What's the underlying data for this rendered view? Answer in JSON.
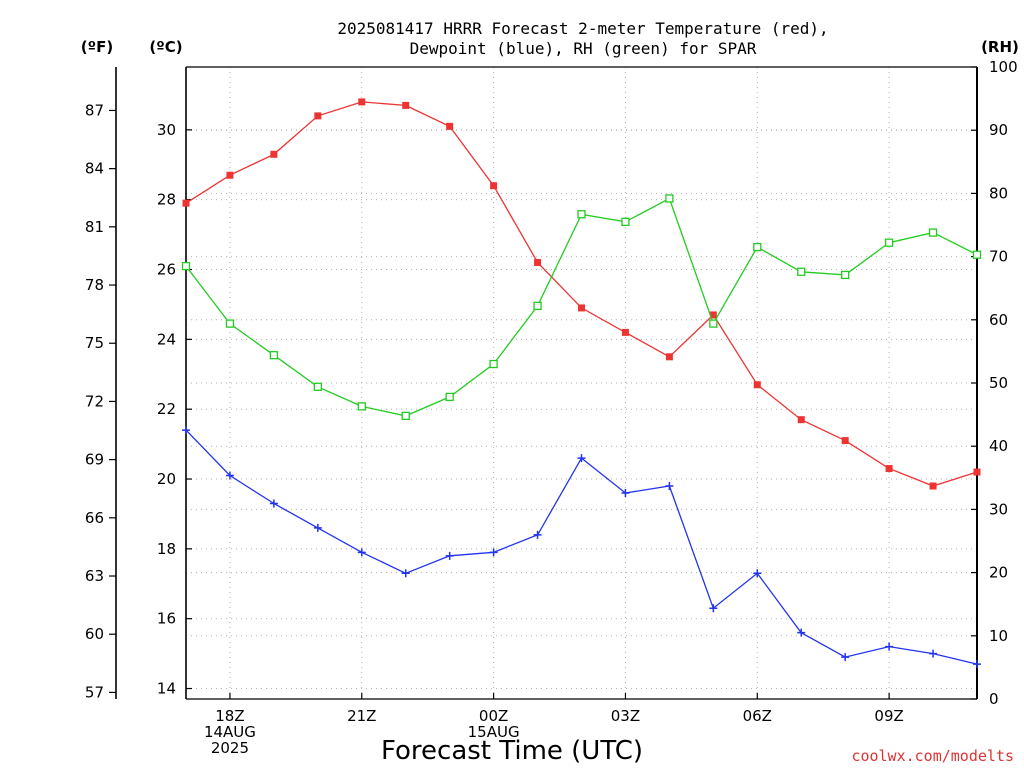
{
  "chart_data": {
    "type": "line",
    "title_line1": "2025081417 HRRR Forecast 2-meter Temperature (red),",
    "title_line2": "Dewpoint (blue), RH (green) for SPAR",
    "xlabel": "Forecast Time (UTC)",
    "credit": "coolwx.com/modelts",
    "unit_f": "(ºF)",
    "unit_c": "(ºC)",
    "unit_rh": "(RH)",
    "x_hours": [
      17,
      18,
      19,
      20,
      21,
      22,
      23,
      24,
      25,
      26,
      27,
      28,
      29,
      30,
      31,
      32,
      33,
      34,
      35
    ],
    "xlim": [
      17,
      35
    ],
    "x_ticks": [
      {
        "hour": 18,
        "lines": [
          "18Z",
          "14AUG",
          "2025"
        ]
      },
      {
        "hour": 21,
        "lines": [
          "21Z"
        ]
      },
      {
        "hour": 24,
        "lines": [
          "00Z",
          "15AUG"
        ]
      },
      {
        "hour": 27,
        "lines": [
          "03Z"
        ]
      },
      {
        "hour": 30,
        "lines": [
          "06Z"
        ]
      },
      {
        "hour": 33,
        "lines": [
          "09Z"
        ]
      }
    ],
    "celsius_axis": {
      "ylim": [
        13.7,
        31.8
      ],
      "ticks": [
        "14",
        "16",
        "18",
        "20",
        "22",
        "24",
        "26",
        "28",
        "30"
      ]
    },
    "fahrenheit_axis": {
      "ticks": [
        "57",
        "60",
        "63",
        "66",
        "69",
        "72",
        "75",
        "78",
        "81",
        "84",
        "87"
      ]
    },
    "rh_axis": {
      "ylim": [
        0,
        100
      ],
      "ticks": [
        "0",
        "10",
        "20",
        "30",
        "40",
        "50",
        "60",
        "70",
        "80",
        "90",
        "100"
      ]
    },
    "grid": true,
    "series": [
      {
        "name": "Temperature",
        "axis": "C",
        "color": "#ee3333",
        "marker": "filled-square",
        "values": [
          27.9,
          28.7,
          29.3,
          30.4,
          30.8,
          30.7,
          30.1,
          28.4,
          26.2,
          24.9,
          24.2,
          23.5,
          24.7,
          22.7,
          21.7,
          21.1,
          20.3,
          19.8,
          20.2
        ]
      },
      {
        "name": "Dewpoint",
        "axis": "C",
        "color": "#2233ee",
        "marker": "plus",
        "values": [
          21.4,
          20.1,
          19.3,
          18.6,
          17.9,
          17.3,
          17.8,
          17.9,
          18.4,
          20.6,
          19.6,
          19.8,
          16.3,
          17.3,
          15.6,
          14.9,
          15.2,
          15.0,
          14.7
        ]
      },
      {
        "name": "RH",
        "axis": "RH",
        "color": "#22cc22",
        "marker": "open-square",
        "values": [
          68.5,
          59.4,
          54.4,
          49.4,
          46.3,
          44.8,
          47.8,
          53.0,
          62.2,
          76.7,
          75.5,
          79.2,
          59.4,
          71.5,
          67.6,
          67.1,
          72.2,
          73.8,
          70.3
        ]
      }
    ]
  }
}
